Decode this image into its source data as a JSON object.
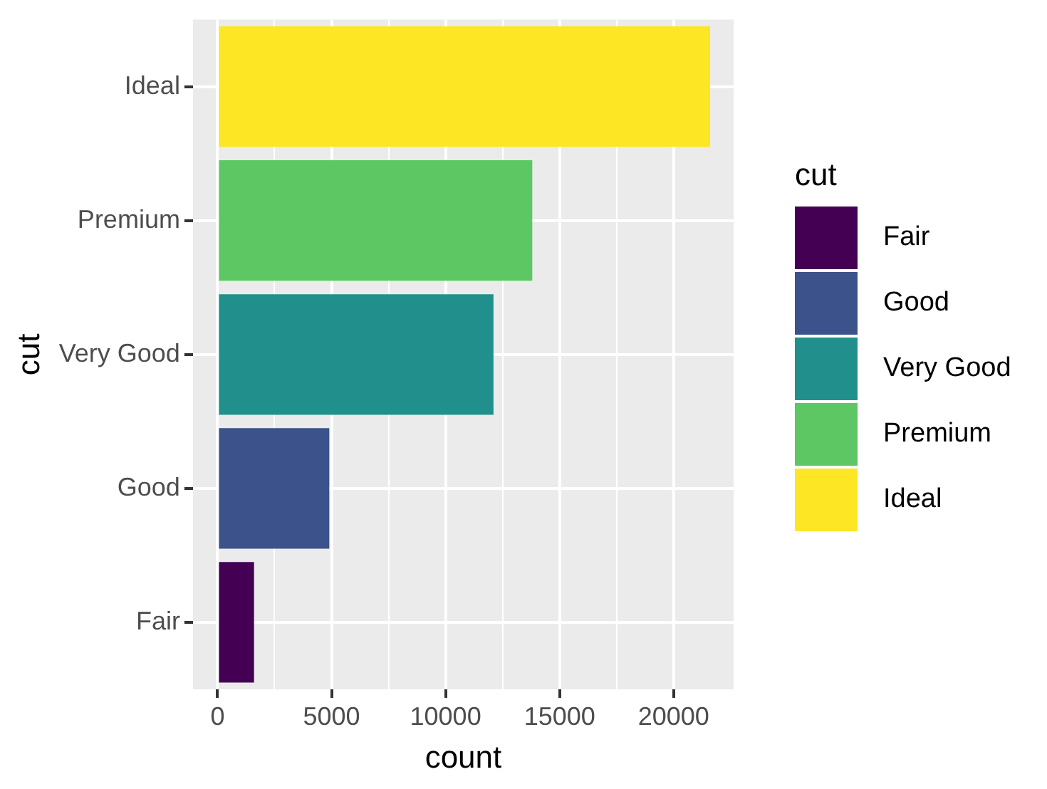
{
  "chart_data": {
    "type": "bar",
    "orientation": "horizontal",
    "xlabel": "count",
    "ylabel": "cut",
    "legend_title": "cut",
    "legend": "right",
    "grid": true,
    "categories": [
      "Ideal",
      "Premium",
      "Very Good",
      "Good",
      "Fair"
    ],
    "series": [
      {
        "name": "Fair",
        "color": "#440154",
        "values": [
          null,
          null,
          null,
          null,
          1600
        ]
      },
      {
        "name": "Good",
        "color": "#3b528b",
        "values": [
          null,
          null,
          null,
          4900,
          null
        ]
      },
      {
        "name": "Very Good",
        "color": "#21908c",
        "values": [
          null,
          null,
          12100,
          null,
          null
        ]
      },
      {
        "name": "Premium",
        "color": "#5dc863",
        "values": [
          null,
          13800,
          null,
          null,
          null
        ]
      },
      {
        "name": "Ideal",
        "color": "#fde725",
        "values": [
          21600,
          null,
          null,
          null,
          null
        ]
      }
    ],
    "xlim": [
      -1078,
      22629
    ],
    "xticks": [
      0,
      {
        "value": 2500,
        "label": null
      },
      5000,
      {
        "value": 7500,
        "label": null
      },
      10000,
      {
        "value": 12500,
        "label": null
      },
      15000,
      {
        "value": 17500,
        "label": null
      },
      20000
    ]
  }
}
